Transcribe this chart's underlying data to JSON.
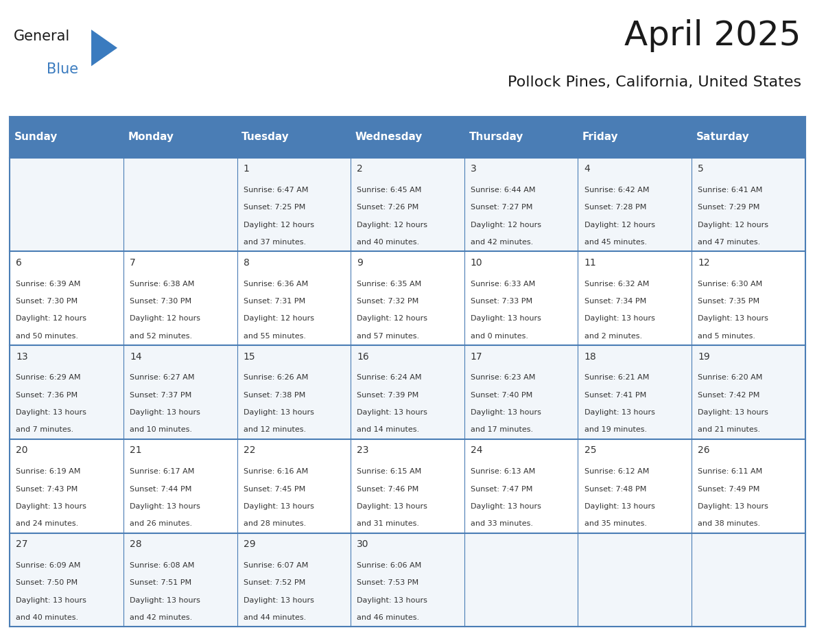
{
  "title": "April 2025",
  "subtitle": "Pollock Pines, California, United States",
  "header_bg": "#4a7db5",
  "header_text": "#ffffff",
  "row_bg_light": "#f2f6fa",
  "row_bg_white": "#ffffff",
  "cell_border": "#4a7db5",
  "day_names": [
    "Sunday",
    "Monday",
    "Tuesday",
    "Wednesday",
    "Thursday",
    "Friday",
    "Saturday"
  ],
  "days": [
    {
      "date": 1,
      "col": 2,
      "row": 0,
      "sunrise": "6:47 AM",
      "sunset": "7:25 PM",
      "dl1": "12 hours",
      "dl2": "and 37 minutes."
    },
    {
      "date": 2,
      "col": 3,
      "row": 0,
      "sunrise": "6:45 AM",
      "sunset": "7:26 PM",
      "dl1": "12 hours",
      "dl2": "and 40 minutes."
    },
    {
      "date": 3,
      "col": 4,
      "row": 0,
      "sunrise": "6:44 AM",
      "sunset": "7:27 PM",
      "dl1": "12 hours",
      "dl2": "and 42 minutes."
    },
    {
      "date": 4,
      "col": 5,
      "row": 0,
      "sunrise": "6:42 AM",
      "sunset": "7:28 PM",
      "dl1": "12 hours",
      "dl2": "and 45 minutes."
    },
    {
      "date": 5,
      "col": 6,
      "row": 0,
      "sunrise": "6:41 AM",
      "sunset": "7:29 PM",
      "dl1": "12 hours",
      "dl2": "and 47 minutes."
    },
    {
      "date": 6,
      "col": 0,
      "row": 1,
      "sunrise": "6:39 AM",
      "sunset": "7:30 PM",
      "dl1": "12 hours",
      "dl2": "and 50 minutes."
    },
    {
      "date": 7,
      "col": 1,
      "row": 1,
      "sunrise": "6:38 AM",
      "sunset": "7:30 PM",
      "dl1": "12 hours",
      "dl2": "and 52 minutes."
    },
    {
      "date": 8,
      "col": 2,
      "row": 1,
      "sunrise": "6:36 AM",
      "sunset": "7:31 PM",
      "dl1": "12 hours",
      "dl2": "and 55 minutes."
    },
    {
      "date": 9,
      "col": 3,
      "row": 1,
      "sunrise": "6:35 AM",
      "sunset": "7:32 PM",
      "dl1": "12 hours",
      "dl2": "and 57 minutes."
    },
    {
      "date": 10,
      "col": 4,
      "row": 1,
      "sunrise": "6:33 AM",
      "sunset": "7:33 PM",
      "dl1": "13 hours",
      "dl2": "and 0 minutes."
    },
    {
      "date": 11,
      "col": 5,
      "row": 1,
      "sunrise": "6:32 AM",
      "sunset": "7:34 PM",
      "dl1": "13 hours",
      "dl2": "and 2 minutes."
    },
    {
      "date": 12,
      "col": 6,
      "row": 1,
      "sunrise": "6:30 AM",
      "sunset": "7:35 PM",
      "dl1": "13 hours",
      "dl2": "and 5 minutes."
    },
    {
      "date": 13,
      "col": 0,
      "row": 2,
      "sunrise": "6:29 AM",
      "sunset": "7:36 PM",
      "dl1": "13 hours",
      "dl2": "and 7 minutes."
    },
    {
      "date": 14,
      "col": 1,
      "row": 2,
      "sunrise": "6:27 AM",
      "sunset": "7:37 PM",
      "dl1": "13 hours",
      "dl2": "and 10 minutes."
    },
    {
      "date": 15,
      "col": 2,
      "row": 2,
      "sunrise": "6:26 AM",
      "sunset": "7:38 PM",
      "dl1": "13 hours",
      "dl2": "and 12 minutes."
    },
    {
      "date": 16,
      "col": 3,
      "row": 2,
      "sunrise": "6:24 AM",
      "sunset": "7:39 PM",
      "dl1": "13 hours",
      "dl2": "and 14 minutes."
    },
    {
      "date": 17,
      "col": 4,
      "row": 2,
      "sunrise": "6:23 AM",
      "sunset": "7:40 PM",
      "dl1": "13 hours",
      "dl2": "and 17 minutes."
    },
    {
      "date": 18,
      "col": 5,
      "row": 2,
      "sunrise": "6:21 AM",
      "sunset": "7:41 PM",
      "dl1": "13 hours",
      "dl2": "and 19 minutes."
    },
    {
      "date": 19,
      "col": 6,
      "row": 2,
      "sunrise": "6:20 AM",
      "sunset": "7:42 PM",
      "dl1": "13 hours",
      "dl2": "and 21 minutes."
    },
    {
      "date": 20,
      "col": 0,
      "row": 3,
      "sunrise": "6:19 AM",
      "sunset": "7:43 PM",
      "dl1": "13 hours",
      "dl2": "and 24 minutes."
    },
    {
      "date": 21,
      "col": 1,
      "row": 3,
      "sunrise": "6:17 AM",
      "sunset": "7:44 PM",
      "dl1": "13 hours",
      "dl2": "and 26 minutes."
    },
    {
      "date": 22,
      "col": 2,
      "row": 3,
      "sunrise": "6:16 AM",
      "sunset": "7:45 PM",
      "dl1": "13 hours",
      "dl2": "and 28 minutes."
    },
    {
      "date": 23,
      "col": 3,
      "row": 3,
      "sunrise": "6:15 AM",
      "sunset": "7:46 PM",
      "dl1": "13 hours",
      "dl2": "and 31 minutes."
    },
    {
      "date": 24,
      "col": 4,
      "row": 3,
      "sunrise": "6:13 AM",
      "sunset": "7:47 PM",
      "dl1": "13 hours",
      "dl2": "and 33 minutes."
    },
    {
      "date": 25,
      "col": 5,
      "row": 3,
      "sunrise": "6:12 AM",
      "sunset": "7:48 PM",
      "dl1": "13 hours",
      "dl2": "and 35 minutes."
    },
    {
      "date": 26,
      "col": 6,
      "row": 3,
      "sunrise": "6:11 AM",
      "sunset": "7:49 PM",
      "dl1": "13 hours",
      "dl2": "and 38 minutes."
    },
    {
      "date": 27,
      "col": 0,
      "row": 4,
      "sunrise": "6:09 AM",
      "sunset": "7:50 PM",
      "dl1": "13 hours",
      "dl2": "and 40 minutes."
    },
    {
      "date": 28,
      "col": 1,
      "row": 4,
      "sunrise": "6:08 AM",
      "sunset": "7:51 PM",
      "dl1": "13 hours",
      "dl2": "and 42 minutes."
    },
    {
      "date": 29,
      "col": 2,
      "row": 4,
      "sunrise": "6:07 AM",
      "sunset": "7:52 PM",
      "dl1": "13 hours",
      "dl2": "and 44 minutes."
    },
    {
      "date": 30,
      "col": 3,
      "row": 4,
      "sunrise": "6:06 AM",
      "sunset": "7:53 PM",
      "dl1": "13 hours",
      "dl2": "and 46 minutes."
    }
  ],
  "num_rows": 5,
  "num_cols": 7,
  "title_fontsize": 36,
  "subtitle_fontsize": 16,
  "header_fontsize": 11,
  "date_fontsize": 10,
  "info_fontsize": 8
}
